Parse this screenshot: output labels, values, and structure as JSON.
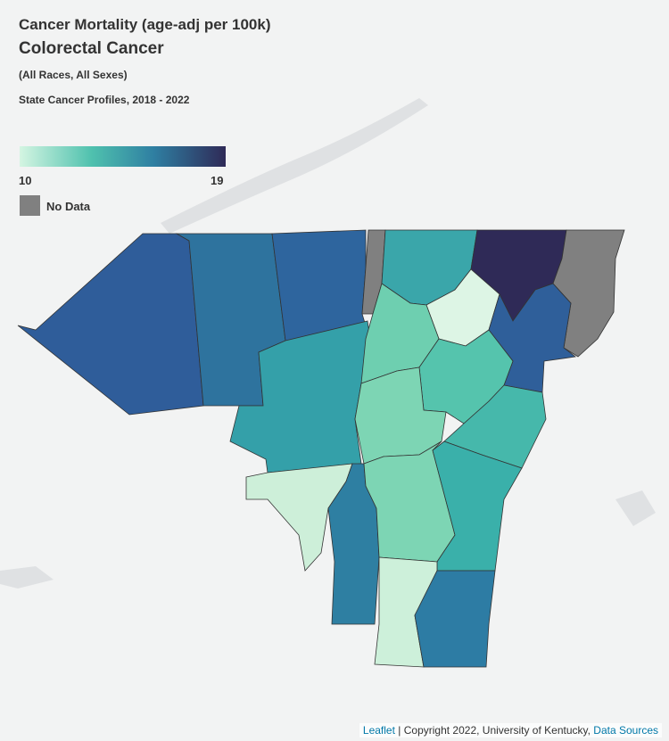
{
  "header": {
    "title": "Cancer Mortality (age-adj per 100k)",
    "subtitle": "Colorectal Cancer",
    "groups": "(All Races, All Sexes)",
    "source": "State Cancer Profiles, 2018 - 2022"
  },
  "legend": {
    "min": 10,
    "max": 19,
    "no_data": "No Data"
  },
  "attribution": {
    "leaflet": "Leaflet",
    "copyright": "| Copyright 2022, University of Kentucky,",
    "sources": "Data Sources"
  }
}
